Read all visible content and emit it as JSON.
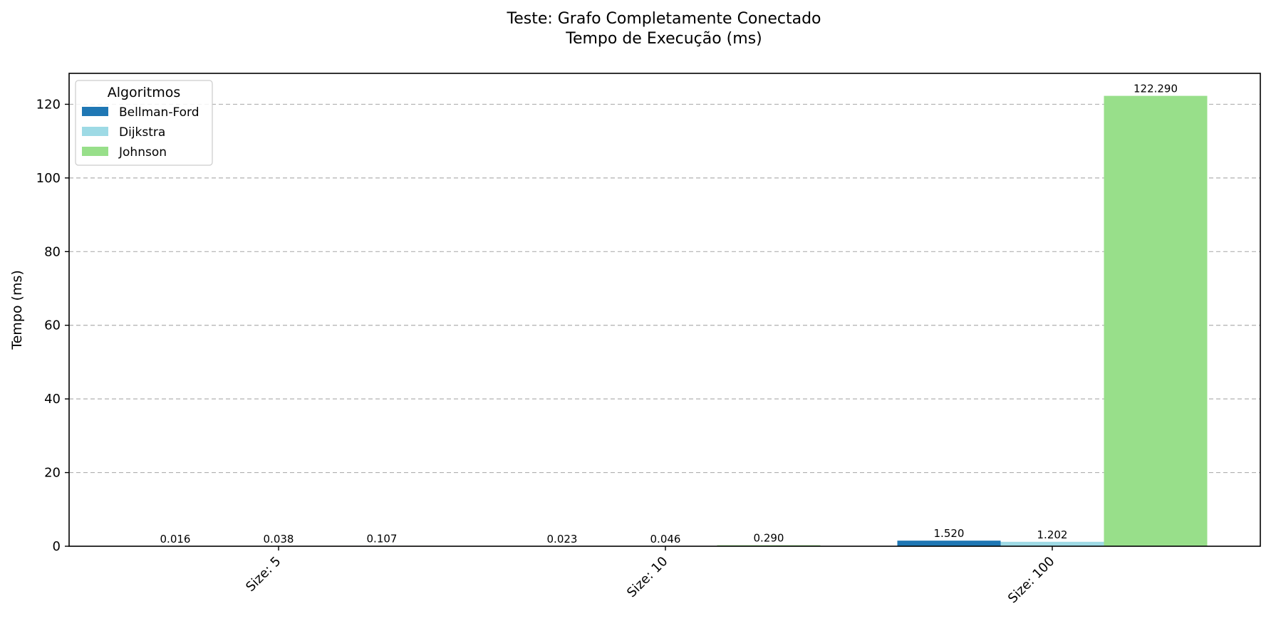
{
  "chart_data": {
    "type": "bar",
    "title_lines": [
      "Teste: Grafo Completamente Conectado",
      "Tempo de Execução (ms)"
    ],
    "xlabel": "",
    "ylabel": "Tempo (ms)",
    "ylim": [
      0,
      128.4
    ],
    "yticks": [
      0,
      20,
      40,
      60,
      80,
      100,
      120
    ],
    "grid": "y-dashed",
    "legend": {
      "title": "Algoritmos",
      "placement": "top-left"
    },
    "categories": [
      "Size: 5",
      "Size: 10",
      "Size: 100"
    ],
    "series": [
      {
        "name": "Bellman-Ford",
        "color": "#1f77b4",
        "values": [
          0.016,
          0.023,
          1.52
        ],
        "labels": [
          "0.016",
          "0.023",
          "1.520"
        ]
      },
      {
        "name": "Dijkstra",
        "color": "#9edae5",
        "values": [
          0.038,
          0.046,
          1.202
        ],
        "labels": [
          "0.038",
          "0.046",
          "1.202"
        ]
      },
      {
        "name": "Johnson",
        "color": "#98df8a",
        "values": [
          0.107,
          0.29,
          122.29
        ],
        "labels": [
          "0.107",
          "0.290",
          "122.290"
        ]
      }
    ]
  }
}
